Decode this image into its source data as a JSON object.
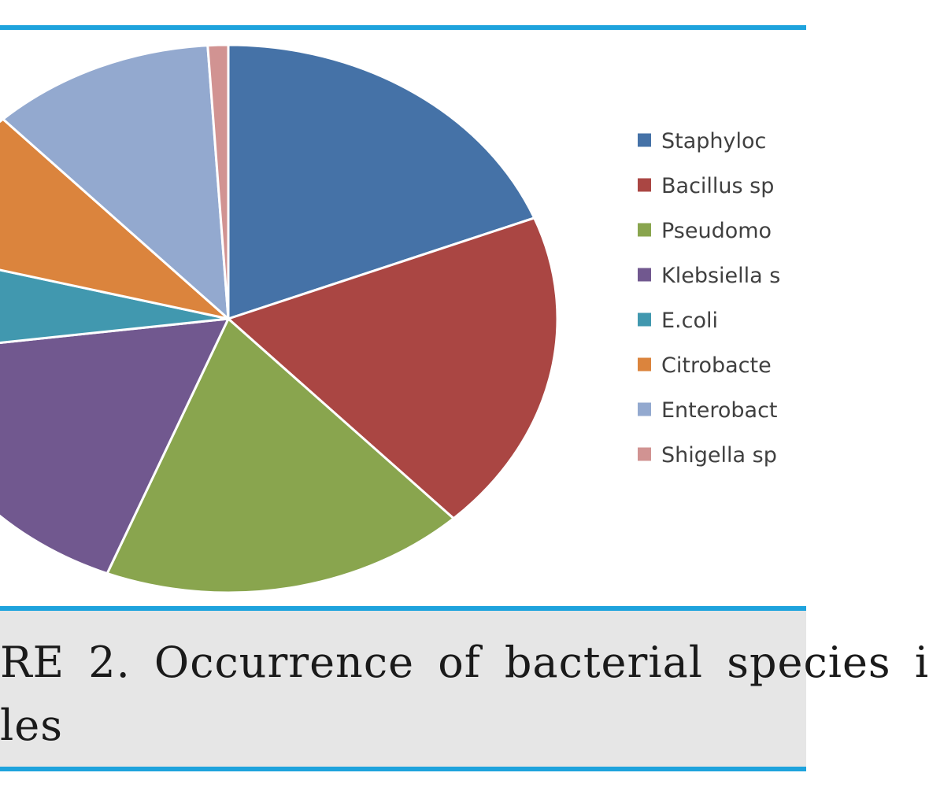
{
  "caption": {
    "line1": "RE 2. Occurrence of bacterial species i",
    "line2": "les"
  },
  "chart_data": {
    "type": "pie",
    "title": "",
    "legend_position": "right",
    "categories": [
      "Staphyloc",
      "Bacillus sp",
      "Pseudomo",
      "Klebsiella s",
      "E.coli",
      "Citrobacte",
      "Enterobact",
      "Shigella sp"
    ],
    "values": [
      19,
      19,
      18,
      17,
      6,
      9,
      11,
      1
    ],
    "colors": [
      "#4572a7",
      "#aa4643",
      "#89a54e",
      "#71588f",
      "#4198af",
      "#db843d",
      "#93a9cf",
      "#d19392"
    ]
  }
}
